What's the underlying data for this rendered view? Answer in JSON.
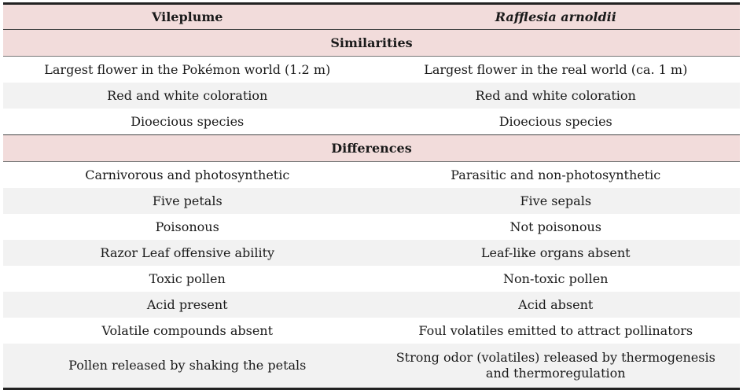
{
  "table": {
    "header": [
      "Vileplume",
      "Rafflesia arnoldii"
    ],
    "sections": [
      {
        "title": "Similarities",
        "rows": [
          [
            "Largest flower in the Pokémon world (1.2 m)",
            "Largest flower in the real world (ca. 1 m)"
          ],
          [
            "Red and white coloration",
            "Red and white coloration"
          ],
          [
            "Dioecious species",
            "Dioecious species"
          ]
        ]
      },
      {
        "title": "Differences",
        "rows": [
          [
            "Carnivorous and photosynthetic",
            "Parasitic and non-photosynthetic"
          ],
          [
            "Five petals",
            "Five sepals"
          ],
          [
            "Poisonous",
            "Not poisonous"
          ],
          [
            "Razor Leaf offensive ability",
            "Leaf-like organs absent"
          ],
          [
            "Toxic pollen",
            "Non-toxic pollen"
          ],
          [
            "Acid present",
            "Acid absent"
          ],
          [
            "Volatile compounds absent",
            "Foul volatiles emitted to attract pollinators"
          ],
          [
            "Pollen released by shaking the petals",
            "Strong odor (volatiles) released by thermogenesis and thermoregulation"
          ]
        ]
      }
    ]
  }
}
